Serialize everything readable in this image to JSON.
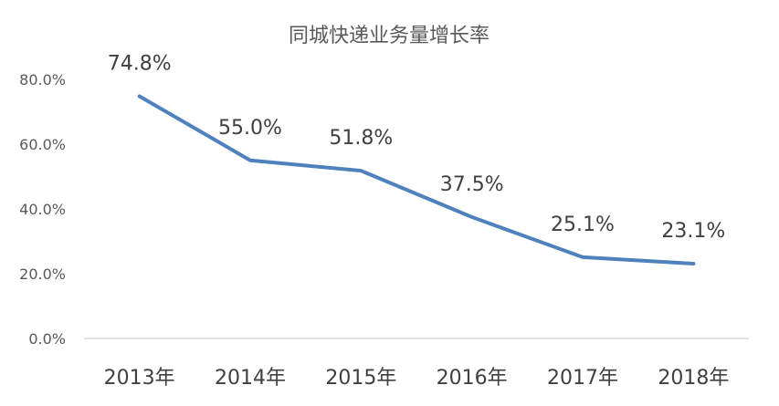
{
  "chart_data": {
    "type": "line",
    "title": "同城快递业务量增长率",
    "categories": [
      "2013年",
      "2014年",
      "2015年",
      "2016年",
      "2017年",
      "2018年"
    ],
    "values": [
      74.8,
      55.0,
      51.8,
      37.5,
      25.1,
      23.1
    ],
    "data_labels": [
      "74.8%",
      "55.0%",
      "51.8%",
      "37.5%",
      "25.1%",
      "23.1%"
    ],
    "y_ticks": [
      0,
      20,
      40,
      60,
      80
    ],
    "y_tick_labels": [
      "0.0%",
      "20.0%",
      "40.0%",
      "60.0%",
      "80.0%"
    ],
    "ylim": [
      0,
      80
    ],
    "grid": false,
    "legend": "none",
    "series_color": "#4f81bd",
    "xlabel": "",
    "ylabel": ""
  }
}
